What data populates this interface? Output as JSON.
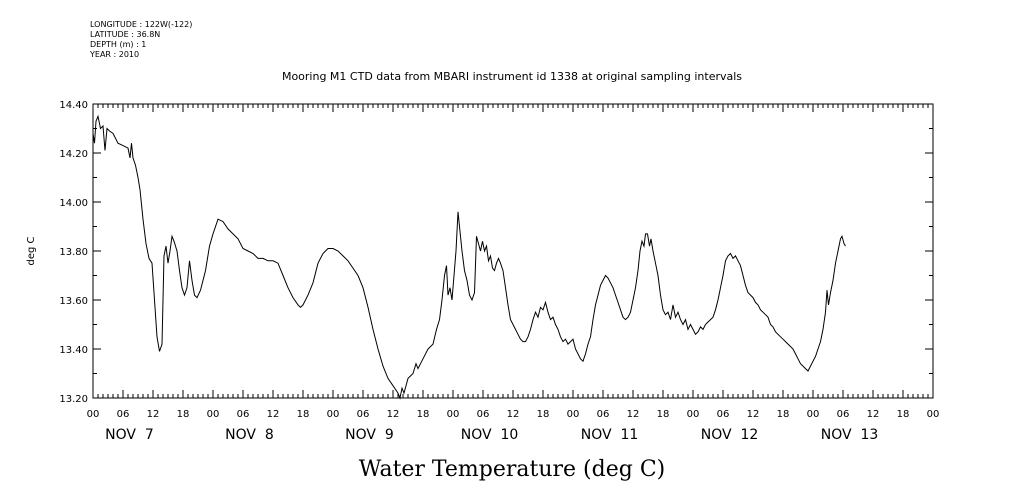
{
  "metadata": {
    "longitude": "LONGITUDE : 122W(-122)",
    "latitude": "LATITUDE : 36.8N",
    "depth": "DEPTH (m) : 1",
    "year": "YEAR : 2010"
  },
  "chart_data": {
    "type": "line",
    "title": "Mooring M1 CTD data from MBARI instrument id 1338 at original sampling intervals",
    "xlabel": "Water Temperature (deg C)",
    "ylabel": "deg C",
    "ylim": [
      13.2,
      14.4
    ],
    "y_ticks": [
      "14.40",
      "14.20",
      "14.00",
      "13.80",
      "13.60",
      "13.40",
      "13.20"
    ],
    "x_hours_range": [
      0,
      168
    ],
    "x_hour_labels": [
      "00",
      "06",
      "12",
      "18",
      "00",
      "06",
      "12",
      "18",
      "00",
      "06",
      "12",
      "18",
      "00",
      "06",
      "12",
      "18",
      "00",
      "06",
      "12",
      "18",
      "00",
      "06",
      "12",
      "18",
      "00",
      "06",
      "12",
      "18",
      "00"
    ],
    "day_labels": [
      "NOV 7",
      "NOV 8",
      "NOV 9",
      "NOV 10",
      "NOV 11",
      "NOV 12",
      "NOV 13"
    ],
    "grid": false,
    "series": [
      {
        "values": [
          [
            0,
            14.28
          ],
          [
            0.3,
            14.24
          ],
          [
            0.6,
            14.33
          ],
          [
            1,
            14.35
          ],
          [
            1.5,
            14.3
          ],
          [
            2,
            14.31
          ],
          [
            2.4,
            14.21
          ],
          [
            2.8,
            14.3
          ],
          [
            3.3,
            14.29
          ],
          [
            4,
            14.28
          ],
          [
            5,
            14.24
          ],
          [
            6,
            14.23
          ],
          [
            7,
            14.22
          ],
          [
            7.4,
            14.18
          ],
          [
            7.7,
            14.24
          ],
          [
            8,
            14.18
          ],
          [
            8.5,
            14.15
          ],
          [
            9,
            14.1
          ],
          [
            9.4,
            14.05
          ],
          [
            10,
            13.93
          ],
          [
            10.6,
            13.83
          ],
          [
            11.2,
            13.77
          ],
          [
            11.8,
            13.75
          ],
          [
            12.3,
            13.6
          ],
          [
            12.8,
            13.45
          ],
          [
            13.3,
            13.39
          ],
          [
            13.8,
            13.42
          ],
          [
            14.2,
            13.78
          ],
          [
            14.6,
            13.82
          ],
          [
            15,
            13.75
          ],
          [
            15.4,
            13.8
          ],
          [
            15.8,
            13.86
          ],
          [
            16.2,
            13.84
          ],
          [
            16.8,
            13.8
          ],
          [
            17.3,
            13.72
          ],
          [
            17.8,
            13.65
          ],
          [
            18.3,
            13.62
          ],
          [
            18.8,
            13.65
          ],
          [
            19.3,
            13.76
          ],
          [
            19.8,
            13.68
          ],
          [
            20.3,
            13.62
          ],
          [
            20.8,
            13.61
          ],
          [
            21.5,
            13.64
          ],
          [
            22.5,
            13.72
          ],
          [
            23.3,
            13.82
          ],
          [
            24,
            13.87
          ],
          [
            25,
            13.93
          ],
          [
            26,
            13.92
          ],
          [
            27,
            13.89
          ],
          [
            28,
            13.87
          ],
          [
            29,
            13.85
          ],
          [
            30,
            13.81
          ],
          [
            31,
            13.8
          ],
          [
            32,
            13.79
          ],
          [
            33,
            13.77
          ],
          [
            34,
            13.77
          ],
          [
            35,
            13.76
          ],
          [
            36,
            13.76
          ],
          [
            37,
            13.75
          ],
          [
            38,
            13.7
          ],
          [
            39,
            13.65
          ],
          [
            40,
            13.61
          ],
          [
            41,
            13.58
          ],
          [
            41.5,
            13.57
          ],
          [
            42,
            13.58
          ],
          [
            43,
            13.62
          ],
          [
            44,
            13.67
          ],
          [
            45,
            13.75
          ],
          [
            46,
            13.79
          ],
          [
            47,
            13.81
          ],
          [
            48,
            13.81
          ],
          [
            49,
            13.8
          ],
          [
            50,
            13.78
          ],
          [
            51,
            13.76
          ],
          [
            52,
            13.73
          ],
          [
            53,
            13.7
          ],
          [
            54,
            13.65
          ],
          [
            55,
            13.57
          ],
          [
            56,
            13.48
          ],
          [
            57,
            13.4
          ],
          [
            58,
            13.33
          ],
          [
            59,
            13.28
          ],
          [
            60,
            13.25
          ],
          [
            61,
            13.22
          ],
          [
            61.4,
            13.2
          ],
          [
            61.8,
            13.24
          ],
          [
            62.2,
            13.22
          ],
          [
            63,
            13.28
          ],
          [
            64,
            13.3
          ],
          [
            64.6,
            13.34
          ],
          [
            65,
            13.32
          ],
          [
            66,
            13.36
          ],
          [
            67,
            13.4
          ],
          [
            68,
            13.42
          ],
          [
            68.7,
            13.48
          ],
          [
            69.3,
            13.52
          ],
          [
            69.8,
            13.6
          ],
          [
            70.3,
            13.7
          ],
          [
            70.7,
            13.74
          ],
          [
            71,
            13.62
          ],
          [
            71.4,
            13.65
          ],
          [
            71.8,
            13.6
          ],
          [
            72.2,
            13.7
          ],
          [
            72.6,
            13.8
          ],
          [
            73,
            13.96
          ],
          [
            73.4,
            13.88
          ],
          [
            73.8,
            13.8
          ],
          [
            74.3,
            13.72
          ],
          [
            74.8,
            13.68
          ],
          [
            75.3,
            13.62
          ],
          [
            75.8,
            13.6
          ],
          [
            76.3,
            13.63
          ],
          [
            76.7,
            13.86
          ],
          [
            77.1,
            13.83
          ],
          [
            77.5,
            13.8
          ],
          [
            77.9,
            13.84
          ],
          [
            78.3,
            13.8
          ],
          [
            78.7,
            13.82
          ],
          [
            79.1,
            13.76
          ],
          [
            79.5,
            13.78
          ],
          [
            79.9,
            13.73
          ],
          [
            80.3,
            13.72
          ],
          [
            80.7,
            13.75
          ],
          [
            81.1,
            13.77
          ],
          [
            81.5,
            13.75
          ],
          [
            82,
            13.72
          ],
          [
            82.5,
            13.65
          ],
          [
            83,
            13.58
          ],
          [
            83.5,
            13.52
          ],
          [
            84,
            13.5
          ],
          [
            84.5,
            13.48
          ],
          [
            85,
            13.46
          ],
          [
            85.5,
            13.44
          ],
          [
            86,
            13.43
          ],
          [
            86.5,
            13.43
          ],
          [
            87,
            13.45
          ],
          [
            87.5,
            13.48
          ],
          [
            88,
            13.52
          ],
          [
            88.5,
            13.55
          ],
          [
            89,
            13.53
          ],
          [
            89.5,
            13.57
          ],
          [
            90,
            13.56
          ],
          [
            90.5,
            13.59
          ],
          [
            91,
            13.55
          ],
          [
            91.5,
            13.52
          ],
          [
            92,
            13.53
          ],
          [
            92.5,
            13.5
          ],
          [
            93,
            13.48
          ],
          [
            93.5,
            13.45
          ],
          [
            94,
            13.43
          ],
          [
            94.5,
            13.44
          ],
          [
            95,
            13.42
          ],
          [
            95.5,
            13.43
          ],
          [
            96,
            13.44
          ],
          [
            96.5,
            13.4
          ],
          [
            97,
            13.38
          ],
          [
            97.5,
            13.36
          ],
          [
            98,
            13.35
          ],
          [
            98.5,
            13.38
          ],
          [
            99,
            13.42
          ],
          [
            99.5,
            13.45
          ],
          [
            100,
            13.52
          ],
          [
            100.5,
            13.58
          ],
          [
            101,
            13.62
          ],
          [
            101.5,
            13.66
          ],
          [
            102,
            13.68
          ],
          [
            102.5,
            13.7
          ],
          [
            103,
            13.69
          ],
          [
            103.5,
            13.67
          ],
          [
            104,
            13.65
          ],
          [
            104.5,
            13.62
          ],
          [
            105,
            13.59
          ],
          [
            105.5,
            13.56
          ],
          [
            106,
            13.53
          ],
          [
            106.5,
            13.52
          ],
          [
            107,
            13.53
          ],
          [
            107.5,
            13.55
          ],
          [
            108,
            13.6
          ],
          [
            108.5,
            13.65
          ],
          [
            109,
            13.72
          ],
          [
            109.4,
            13.8
          ],
          [
            109.8,
            13.84
          ],
          [
            110.2,
            13.82
          ],
          [
            110.5,
            13.87
          ],
          [
            110.9,
            13.87
          ],
          [
            111.3,
            13.82
          ],
          [
            111.6,
            13.85
          ],
          [
            112,
            13.8
          ],
          [
            112.5,
            13.75
          ],
          [
            113,
            13.7
          ],
          [
            113.5,
            13.62
          ],
          [
            114,
            13.56
          ],
          [
            114.5,
            13.54
          ],
          [
            115,
            13.55
          ],
          [
            115.5,
            13.52
          ],
          [
            116,
            13.58
          ],
          [
            116.5,
            13.53
          ],
          [
            117,
            13.55
          ],
          [
            117.5,
            13.52
          ],
          [
            118,
            13.5
          ],
          [
            118.5,
            13.52
          ],
          [
            119,
            13.48
          ],
          [
            119.5,
            13.5
          ],
          [
            120,
            13.48
          ],
          [
            120.5,
            13.46
          ],
          [
            121,
            13.47
          ],
          [
            121.5,
            13.49
          ],
          [
            122,
            13.48
          ],
          [
            122.5,
            13.5
          ],
          [
            123,
            13.51
          ],
          [
            123.5,
            13.52
          ],
          [
            124,
            13.53
          ],
          [
            124.5,
            13.56
          ],
          [
            125,
            13.6
          ],
          [
            125.5,
            13.65
          ],
          [
            126,
            13.7
          ],
          [
            126.5,
            13.76
          ],
          [
            127,
            13.78
          ],
          [
            127.5,
            13.79
          ],
          [
            128,
            13.77
          ],
          [
            128.5,
            13.78
          ],
          [
            129,
            13.76
          ],
          [
            129.5,
            13.74
          ],
          [
            130,
            13.7
          ],
          [
            130.5,
            13.66
          ],
          [
            131,
            13.63
          ],
          [
            131.5,
            13.62
          ],
          [
            132,
            13.61
          ],
          [
            132.5,
            13.59
          ],
          [
            133,
            13.58
          ],
          [
            133.5,
            13.56
          ],
          [
            134,
            13.55
          ],
          [
            134.5,
            13.54
          ],
          [
            135,
            13.53
          ],
          [
            135.5,
            13.5
          ],
          [
            136,
            13.49
          ],
          [
            136.5,
            13.47
          ],
          [
            137,
            13.46
          ],
          [
            137.5,
            13.45
          ],
          [
            138,
            13.44
          ],
          [
            138.5,
            13.43
          ],
          [
            139,
            13.42
          ],
          [
            139.5,
            13.41
          ],
          [
            140,
            13.4
          ],
          [
            140.5,
            13.38
          ],
          [
            141,
            13.36
          ],
          [
            141.5,
            13.34
          ],
          [
            142,
            13.33
          ],
          [
            142.5,
            13.32
          ],
          [
            143,
            13.31
          ],
          [
            143.5,
            13.33
          ],
          [
            144,
            13.35
          ],
          [
            144.5,
            13.37
          ],
          [
            145,
            13.4
          ],
          [
            145.5,
            13.43
          ],
          [
            146,
            13.48
          ],
          [
            146.5,
            13.55
          ],
          [
            146.8,
            13.64
          ],
          [
            147.1,
            13.58
          ],
          [
            147.5,
            13.63
          ],
          [
            148,
            13.68
          ],
          [
            148.5,
            13.75
          ],
          [
            149,
            13.8
          ],
          [
            149.5,
            13.85
          ],
          [
            149.8,
            13.86
          ],
          [
            150.2,
            13.83
          ],
          [
            150.5,
            13.82
          ]
        ]
      }
    ]
  }
}
